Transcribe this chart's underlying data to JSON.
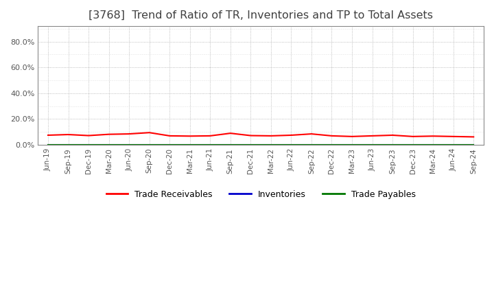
{
  "title": "[3768]  Trend of Ratio of TR, Inventories and TP to Total Assets",
  "y_ticks": [
    0.0,
    20.0,
    40.0,
    60.0,
    80.0
  ],
  "ylim": [
    0.0,
    92.0
  ],
  "x_labels": [
    "Jun-19",
    "Sep-19",
    "Dec-19",
    "Mar-20",
    "Jun-20",
    "Sep-20",
    "Dec-20",
    "Mar-21",
    "Jun-21",
    "Sep-21",
    "Dec-21",
    "Mar-22",
    "Jun-22",
    "Sep-22",
    "Dec-22",
    "Mar-23",
    "Jun-23",
    "Sep-23",
    "Dec-23",
    "Mar-24",
    "Jun-24",
    "Sep-24"
  ],
  "trade_receivables": [
    7.5,
    8.0,
    7.2,
    8.2,
    8.5,
    9.5,
    7.0,
    6.8,
    7.0,
    9.0,
    7.2,
    7.0,
    7.5,
    8.5,
    7.0,
    6.5,
    7.0,
    7.5,
    6.5,
    6.8,
    6.5,
    6.2
  ],
  "inventories": [
    0.05,
    0.05,
    0.05,
    0.05,
    0.05,
    0.05,
    0.05,
    0.05,
    0.05,
    0.05,
    0.05,
    0.05,
    0.05,
    0.05,
    0.05,
    0.05,
    0.05,
    0.05,
    0.05,
    0.05,
    0.05,
    0.05
  ],
  "trade_payables": [
    0.05,
    0.05,
    0.05,
    0.05,
    0.05,
    0.05,
    0.05,
    0.05,
    0.05,
    0.05,
    0.05,
    0.05,
    0.05,
    0.05,
    0.05,
    0.05,
    0.05,
    0.05,
    0.05,
    0.05,
    0.05,
    0.05
  ],
  "colors": {
    "trade_receivables": "#FF0000",
    "inventories": "#0000CC",
    "trade_payables": "#007700"
  },
  "legend_labels": [
    "Trade Receivables",
    "Inventories",
    "Trade Payables"
  ],
  "background_color": "#FFFFFF",
  "plot_bg_color": "#FFFFFF",
  "grid_color": "#AAAAAA",
  "title_color": "#404040",
  "title_fontsize": 11.5
}
